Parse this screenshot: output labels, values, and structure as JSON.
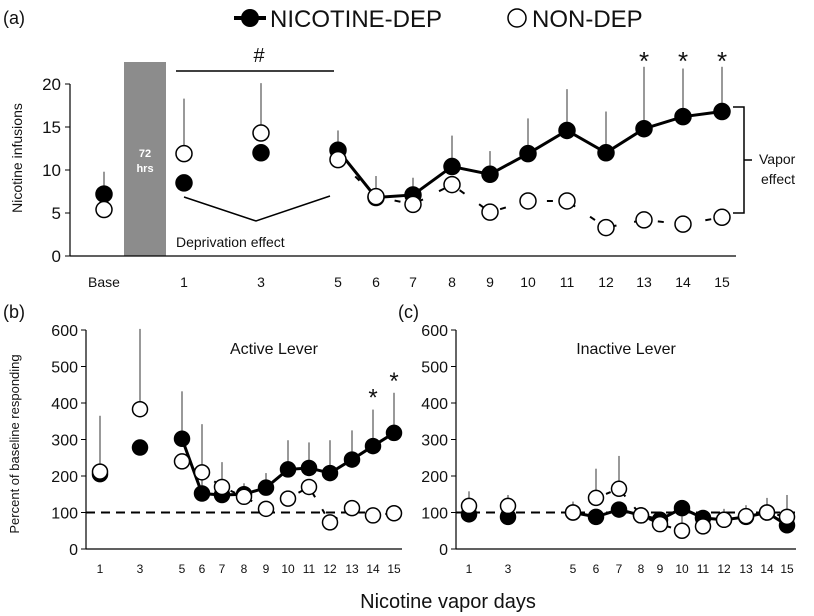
{
  "legend": {
    "dep": "NICOTINE-DEP",
    "nondep": "NON-DEP"
  },
  "xlabel": "Nicotine vapor days",
  "colors": {
    "dep": "#000000",
    "nondep": "#ffffff",
    "bar": "#8c8c8c",
    "error": "#999999"
  },
  "chart_data": [
    {
      "panel": "(a)",
      "type": "line",
      "ylabel": "Nicotine infusions",
      "ylim": [
        0,
        20
      ],
      "yticks": [
        0,
        5,
        10,
        15,
        20
      ],
      "xtick_labels": [
        "Base",
        "1",
        "3",
        "5",
        "6",
        "7",
        "8",
        "9",
        "10",
        "11",
        "12",
        "13",
        "14",
        "15"
      ],
      "bar_label": [
        "72",
        "hrs"
      ],
      "annotations": {
        "hash": "#",
        "deprivation": "Deprivation effect",
        "vapor": [
          "Vapor",
          "effect"
        ],
        "stars": [
          "*",
          "*",
          "*"
        ]
      },
      "star_days": [
        13,
        14,
        15
      ],
      "series": [
        {
          "name": "NICOTINE-DEP",
          "x": [
            "Base",
            1,
            3,
            5,
            6,
            7,
            8,
            9,
            10,
            11,
            12,
            13,
            14,
            15
          ],
          "values": [
            7.2,
            8.5,
            12.0,
            12.3,
            6.8,
            7.1,
            10.4,
            9.5,
            11.9,
            14.6,
            12.0,
            14.8,
            16.2,
            16.8
          ],
          "err": [
            2.6,
            0,
            0,
            2.3,
            2.5,
            2.0,
            3.6,
            2.7,
            4.1,
            4.8,
            4.8,
            7.2,
            5.6,
            5.2
          ]
        },
        {
          "name": "NON-DEP",
          "x": [
            "Base",
            1,
            3,
            5,
            6,
            7,
            8,
            9,
            10,
            11,
            12,
            13,
            14,
            15
          ],
          "values": [
            5.4,
            11.9,
            14.3,
            11.2,
            6.9,
            6.0,
            8.3,
            5.1,
            6.4,
            6.4,
            3.3,
            4.2,
            3.7,
            4.5
          ],
          "err": [
            0,
            6.4,
            5.8,
            0,
            0,
            0,
            0,
            0,
            0,
            0,
            0,
            0,
            0,
            0
          ]
        }
      ]
    },
    {
      "panel": "(b)",
      "type": "line",
      "title": "Active Lever",
      "ylabel": "Percent of baseline responding",
      "ylim": [
        0,
        600
      ],
      "yticks": [
        0,
        100,
        200,
        300,
        400,
        500,
        600
      ],
      "x": [
        1,
        3,
        5,
        6,
        7,
        8,
        9,
        10,
        11,
        12,
        13,
        14,
        15
      ],
      "reference_line": 100,
      "stars": [
        "*",
        "*"
      ],
      "star_days": [
        14,
        15
      ],
      "series": [
        {
          "name": "NICOTINE-DEP",
          "values": [
            205,
            278,
            302,
            152,
            148,
            150,
            168,
            218,
            222,
            208,
            245,
            282,
            318
          ],
          "err": [
            160,
            0,
            130,
            190,
            90,
            30,
            40,
            80,
            70,
            90,
            80,
            100,
            110
          ]
        },
        {
          "name": "NON-DEP",
          "values": [
            212,
            383,
            240,
            210,
            170,
            143,
            110,
            138,
            170,
            73,
            112,
            92,
            98
          ],
          "err": [
            0,
            220,
            0,
            0,
            0,
            0,
            0,
            0,
            0,
            0,
            0,
            0,
            0
          ]
        }
      ]
    },
    {
      "panel": "(c)",
      "type": "line",
      "title": "Inactive Lever",
      "ylim": [
        0,
        600
      ],
      "yticks": [
        0,
        100,
        200,
        300,
        400,
        500,
        600
      ],
      "x": [
        1,
        3,
        5,
        6,
        7,
        8,
        9,
        10,
        11,
        12,
        13,
        14,
        15
      ],
      "reference_line": 100,
      "series": [
        {
          "name": "NICOTINE-DEP",
          "values": [
            95,
            88,
            100,
            88,
            108,
            92,
            80,
            112,
            85,
            80,
            88,
            100,
            65
          ],
          "err": [
            0,
            0,
            0,
            0,
            0,
            0,
            0,
            0,
            0,
            0,
            0,
            0,
            0
          ]
        },
        {
          "name": "NON-DEP",
          "values": [
            118,
            118,
            100,
            140,
            165,
            92,
            68,
            50,
            62,
            80,
            90,
            100,
            88
          ],
          "err": [
            40,
            30,
            30,
            80,
            90,
            20,
            30,
            40,
            40,
            30,
            30,
            40,
            60
          ]
        }
      ]
    }
  ]
}
